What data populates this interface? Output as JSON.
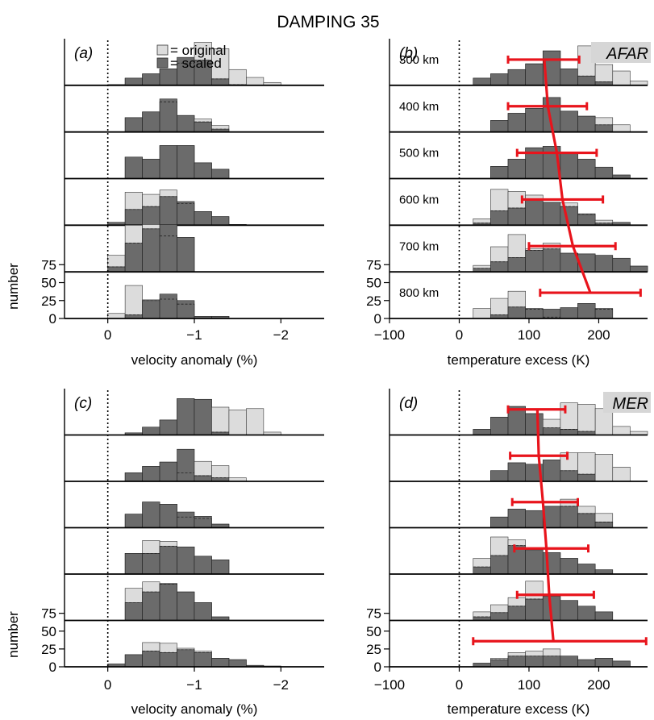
{
  "figure_title": "DAMPING 35",
  "legend": {
    "original": "= original",
    "scaled": "= scaled"
  },
  "colors": {
    "original": "#dcdcdc",
    "scaled": "#6b6b6b",
    "error_bar": "#e8141c",
    "label_bg": "#d6d6d6"
  },
  "chart_data": [
    {
      "panel": "(a)",
      "type": "histogram",
      "xlabel": "velocity anomaly (%)",
      "ylabel": "number",
      "xlim": [
        0.5,
        -2.5
      ],
      "xticks": [
        {
          "v": 0,
          "t": "0"
        },
        {
          "v": -1,
          "t": "−1"
        },
        {
          "v": -2,
          "t": "−2"
        }
      ],
      "yticks": [
        {
          "v": 0,
          "t": "0"
        },
        {
          "v": 25,
          "t": "25"
        },
        {
          "v": 50,
          "t": "50"
        },
        {
          "v": 75,
          "t": "75"
        }
      ],
      "bin_edges": [
        0.0,
        -0.2,
        -0.4,
        -0.6,
        -0.8,
        -1.0,
        -1.2,
        -1.4,
        -1.6,
        -1.8,
        -2.0
      ],
      "rows": [
        {
          "original": [
            1,
            10,
            16,
            23,
            31,
            60,
            51,
            22,
            11,
            4
          ],
          "scaled": [
            1,
            10,
            16,
            23,
            39,
            35,
            9,
            1,
            0,
            0
          ]
        },
        {
          "original": [
            0,
            20,
            28,
            42,
            23,
            18,
            9,
            0,
            0,
            0
          ],
          "scaled": [
            0,
            20,
            28,
            46,
            23,
            14,
            4,
            0,
            0,
            0
          ]
        },
        {
          "original": [
            0,
            30,
            27,
            46,
            46,
            22,
            13,
            0,
            0,
            0
          ],
          "scaled": [
            0,
            30,
            27,
            46,
            46,
            22,
            13,
            0,
            0,
            0
          ]
        },
        {
          "original": [
            4,
            46,
            43,
            49,
            30,
            19,
            12,
            1,
            0,
            0
          ],
          "scaled": [
            4,
            22,
            26,
            40,
            33,
            19,
            12,
            1,
            0,
            0
          ]
        },
        {
          "original": [
            23,
            65,
            66,
            50,
            48,
            0,
            0,
            0,
            0,
            0
          ],
          "scaled": [
            7,
            40,
            60,
            66,
            48,
            0,
            0,
            0,
            0,
            0
          ]
        },
        {
          "original": [
            7,
            46,
            26,
            27,
            20,
            3,
            3,
            0,
            0,
            0
          ],
          "scaled": [
            0,
            5,
            25,
            34,
            25,
            3,
            3,
            0,
            0,
            0
          ]
        }
      ]
    },
    {
      "panel": "(b)",
      "badge": "AFAR",
      "type": "histogram",
      "xlabel": "temperature excess (K)",
      "ylabel": "",
      "xlim": [
        -100,
        270
      ],
      "xticks": [
        {
          "v": -100,
          "t": "−100"
        },
        {
          "v": 0,
          "t": "0"
        },
        {
          "v": 100,
          "t": "100"
        },
        {
          "v": 200,
          "t": "200"
        }
      ],
      "yticks": [
        {
          "v": 0,
          "t": "0"
        },
        {
          "v": 25,
          "t": "25"
        },
        {
          "v": 50,
          "t": "50"
        },
        {
          "v": 75,
          "t": "75"
        }
      ],
      "bin_edges": [
        20,
        45,
        70,
        95,
        120,
        145,
        170,
        195,
        220,
        245,
        270
      ],
      "depths": [
        "300 km",
        "400 km",
        "500 km",
        "600 km",
        "700 km",
        "800 km"
      ],
      "error_bars": [
        {
          "mean": 122,
          "low": 70,
          "high": 172
        },
        {
          "mean": 127,
          "low": 70,
          "high": 183
        },
        {
          "mean": 140,
          "low": 83,
          "high": 197
        },
        {
          "mean": 148,
          "low": 90,
          "high": 206
        },
        {
          "mean": 163,
          "low": 100,
          "high": 224
        },
        {
          "mean": 188,
          "low": 116,
          "high": 260
        }
      ],
      "rows": [
        {
          "original": [
            10,
            16,
            22,
            30,
            48,
            23,
            55,
            29,
            20,
            6
          ],
          "scaled": [
            10,
            16,
            22,
            30,
            48,
            23,
            13,
            5,
            0,
            0
          ]
        },
        {
          "original": [
            0,
            16,
            26,
            33,
            48,
            29,
            22,
            20,
            10,
            0
          ],
          "scaled": [
            0,
            16,
            26,
            33,
            48,
            29,
            22,
            10,
            0,
            0
          ]
        },
        {
          "original": [
            0,
            17,
            27,
            43,
            45,
            36,
            27,
            16,
            5,
            0
          ],
          "scaled": [
            0,
            17,
            27,
            43,
            45,
            36,
            27,
            16,
            5,
            0
          ]
        },
        {
          "original": [
            9,
            50,
            47,
            42,
            32,
            31,
            16,
            7,
            4,
            0
          ],
          "scaled": [
            3,
            20,
            24,
            35,
            32,
            26,
            15,
            3,
            4,
            0
          ]
        },
        {
          "original": [
            9,
            35,
            52,
            32,
            40,
            26,
            25,
            23,
            19,
            8
          ],
          "scaled": [
            5,
            14,
            20,
            30,
            32,
            26,
            25,
            23,
            19,
            8
          ]
        },
        {
          "original": [
            14,
            28,
            38,
            13,
            2,
            15,
            21,
            13,
            0,
            0
          ],
          "scaled": [
            0,
            5,
            16,
            14,
            13,
            15,
            21,
            14,
            0,
            0
          ]
        }
      ]
    },
    {
      "panel": "(c)",
      "type": "histogram",
      "xlabel": "velocity anomaly (%)",
      "ylabel": "number",
      "xlim": [
        0.5,
        -2.5
      ],
      "xticks": [
        {
          "v": 0,
          "t": "0"
        },
        {
          "v": -1,
          "t": "−1"
        },
        {
          "v": -2,
          "t": "−2"
        }
      ],
      "yticks": [
        {
          "v": 0,
          "t": "0"
        },
        {
          "v": 25,
          "t": "25"
        },
        {
          "v": 50,
          "t": "50"
        },
        {
          "v": 75,
          "t": "75"
        }
      ],
      "bin_edges": [
        0.0,
        -0.2,
        -0.4,
        -0.6,
        -0.8,
        -1.0,
        -1.2,
        -1.4,
        -1.6,
        -1.8,
        -2.0
      ],
      "rows": [
        {
          "original": [
            0,
            3,
            11,
            21,
            51,
            50,
            39,
            35,
            37,
            4
          ],
          "scaled": [
            0,
            3,
            11,
            21,
            51,
            50,
            4,
            0,
            0,
            0
          ]
        },
        {
          "original": [
            0,
            12,
            21,
            27,
            12,
            28,
            22,
            5,
            0,
            0
          ],
          "scaled": [
            0,
            12,
            21,
            27,
            45,
            8,
            5,
            0,
            0,
            0
          ]
        },
        {
          "original": [
            0,
            19,
            36,
            33,
            15,
            13,
            5,
            0,
            0,
            0
          ],
          "scaled": [
            0,
            19,
            36,
            33,
            22,
            16,
            5,
            0,
            0,
            0
          ]
        },
        {
          "original": [
            0,
            29,
            47,
            46,
            38,
            25,
            20,
            0,
            0,
            0
          ],
          "scaled": [
            0,
            29,
            29,
            39,
            38,
            25,
            20,
            0,
            0,
            0
          ]
        },
        {
          "original": [
            0,
            45,
            54,
            52,
            40,
            25,
            5,
            0,
            0,
            0
          ],
          "scaled": [
            0,
            25,
            40,
            51,
            40,
            25,
            5,
            0,
            0,
            0
          ]
        },
        {
          "original": [
            0,
            17,
            34,
            33,
            26,
            22,
            12,
            10,
            2,
            1
          ],
          "scaled": [
            4,
            17,
            22,
            20,
            24,
            20,
            12,
            10,
            2,
            1
          ]
        }
      ]
    },
    {
      "panel": "(d)",
      "badge": "MER",
      "type": "histogram",
      "xlabel": "temperature excess (K)",
      "ylabel": "",
      "xlim": [
        -100,
        270
      ],
      "xticks": [
        {
          "v": -100,
          "t": "−100"
        },
        {
          "v": 0,
          "t": "0"
        },
        {
          "v": 100,
          "t": "100"
        },
        {
          "v": 200,
          "t": "200"
        }
      ],
      "yticks": [
        {
          "v": 0,
          "t": "0"
        },
        {
          "v": 25,
          "t": "25"
        },
        {
          "v": 50,
          "t": "50"
        },
        {
          "v": 75,
          "t": "75"
        }
      ],
      "bin_edges": [
        20,
        45,
        70,
        95,
        120,
        145,
        170,
        195,
        220,
        245,
        270
      ],
      "error_bars": [
        {
          "mean": 112,
          "low": 70,
          "high": 152
        },
        {
          "mean": 114,
          "low": 73,
          "high": 155
        },
        {
          "mean": 120,
          "low": 76,
          "high": 170
        },
        {
          "mean": 125,
          "low": 79,
          "high": 185
        },
        {
          "mean": 129,
          "low": 83,
          "high": 193
        },
        {
          "mean": 135,
          "low": 20,
          "high": 268
        }
      ],
      "rows": [
        {
          "original": [
            8,
            25,
            40,
            30,
            22,
            45,
            43,
            37,
            12,
            5
          ],
          "scaled": [
            8,
            25,
            40,
            30,
            10,
            8,
            5,
            0,
            0,
            0
          ]
        },
        {
          "original": [
            0,
            15,
            26,
            24,
            30,
            40,
            40,
            38,
            20,
            0
          ],
          "scaled": [
            0,
            15,
            26,
            24,
            30,
            15,
            10,
            0,
            0,
            0
          ]
        },
        {
          "original": [
            0,
            15,
            26,
            24,
            30,
            40,
            30,
            20,
            0,
            0
          ],
          "scaled": [
            0,
            15,
            26,
            24,
            30,
            30,
            20,
            8,
            0,
            0
          ]
        },
        {
          "original": [
            22,
            52,
            48,
            34,
            30,
            22,
            14,
            6,
            0,
            0
          ],
          "scaled": [
            10,
            26,
            40,
            34,
            30,
            22,
            14,
            6,
            0,
            0
          ]
        },
        {
          "original": [
            12,
            22,
            32,
            55,
            34,
            28,
            20,
            12,
            0,
            0
          ],
          "scaled": [
            5,
            11,
            20,
            30,
            34,
            28,
            20,
            12,
            0,
            0
          ]
        },
        {
          "original": [
            5,
            12,
            20,
            22,
            25,
            15,
            10,
            12,
            8,
            0
          ],
          "scaled": [
            5,
            10,
            15,
            15,
            15,
            15,
            10,
            12,
            8,
            0
          ]
        }
      ]
    }
  ]
}
